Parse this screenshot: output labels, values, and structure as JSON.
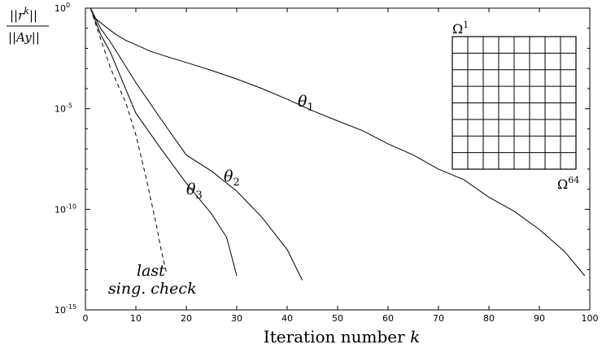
{
  "chart_data": {
    "type": "line",
    "xlabel_main": "Iteration number",
    "xlabel_var": "k",
    "ylabel_num": "||r",
    "ylabel_num_sup": "k",
    "ylabel_num_end": "||",
    "ylabel_den": "||Ay||",
    "y_scale": "log",
    "xlim": [
      0,
      100
    ],
    "ylim": [
      1e-15,
      1
    ],
    "x_ticks": [
      0,
      10,
      20,
      30,
      40,
      50,
      60,
      70,
      80,
      90,
      100
    ],
    "x_tick_labels": [
      "0",
      "10",
      "20",
      "30",
      "40",
      "50",
      "60",
      "70",
      "80",
      "90",
      "100"
    ],
    "y_ticks": [
      {
        "value": 1,
        "base": "10",
        "exp": "0"
      },
      {
        "value": 1e-05,
        "base": "10",
        "exp": "-5"
      },
      {
        "value": 1e-10,
        "base": "10",
        "exp": "-10"
      },
      {
        "value": 1e-15,
        "base": "10",
        "exp": "-15"
      }
    ],
    "grid": false,
    "series": [
      {
        "name": "θ",
        "subscript": "1",
        "style": "solid",
        "x": [
          1,
          2,
          4,
          6,
          8,
          10,
          13,
          16,
          20,
          25,
          30,
          35,
          40,
          45,
          50,
          55,
          60,
          65,
          70,
          75,
          80,
          85,
          90,
          95,
          99
        ],
        "y": [
          1,
          0.3,
          0.12,
          0.05,
          0.025,
          0.015,
          0.007,
          0.004,
          0.002,
          0.0008,
          0.0003,
          0.0001,
          3e-05,
          8e-06,
          2.5e-06,
          8e-07,
          1.8e-07,
          5e-08,
          1e-08,
          3e-09,
          4e-10,
          8e-11,
          1e-11,
          8e-13,
          5e-14
        ]
      },
      {
        "name": "θ",
        "subscript": "2",
        "style": "solid",
        "x": [
          1,
          3,
          5,
          10,
          15,
          20,
          25,
          30,
          35,
          40,
          43
        ],
        "y": [
          1,
          0.1,
          0.02,
          0.0002,
          3e-06,
          5e-08,
          8e-09,
          8e-10,
          4e-11,
          1e-12,
          3e-14
        ]
      },
      {
        "name": "θ",
        "subscript": "3",
        "style": "solid",
        "x": [
          1,
          3,
          5,
          10,
          15,
          20,
          25,
          28,
          30
        ],
        "y": [
          1,
          0.05,
          0.006,
          6e-06,
          1e-07,
          2e-09,
          6e-11,
          4e-12,
          5e-14
        ]
      },
      {
        "name": "last sing. check",
        "style": "dashed",
        "x": [
          1,
          3,
          5,
          8,
          10,
          12,
          14,
          15,
          16
        ],
        "y": [
          1,
          0.03,
          0.001,
          2e-05,
          5e-07,
          4e-09,
          2e-11,
          1e-12,
          8e-14
        ]
      }
    ],
    "annotations": {
      "last_line1": "last",
      "last_line2": "sing. check",
      "inset_top": "Ω",
      "inset_top_sup": "1",
      "inset_bottom": "Ω",
      "inset_bottom_sup": "64"
    },
    "inset_grid": {
      "rows": 8,
      "cols": 8
    }
  }
}
